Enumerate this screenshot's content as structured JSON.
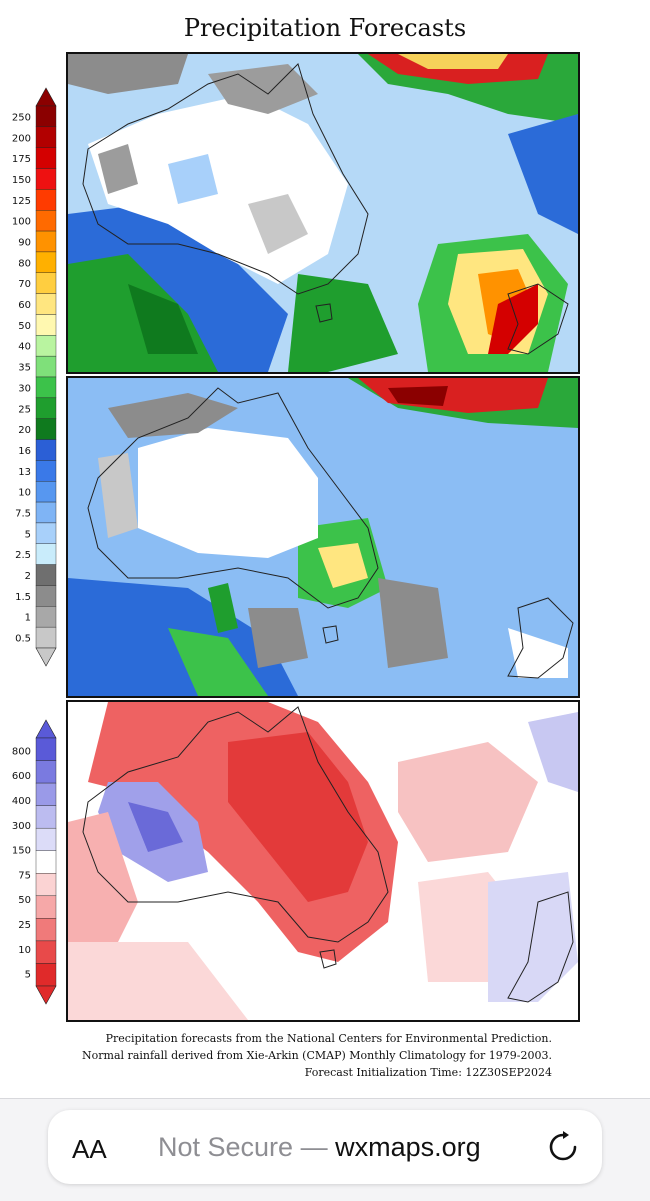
{
  "title": "Precipitation Forecasts",
  "legend_top": {
    "labels": [
      "250",
      "200",
      "175",
      "150",
      "125",
      "100",
      "90",
      "80",
      "70",
      "60",
      "50",
      "40",
      "35",
      "30",
      "25",
      "20",
      "16",
      "13",
      "10",
      "7.5",
      "5",
      "2.5",
      "2",
      "1.5",
      "1",
      "0.5"
    ],
    "colors": [
      "#8b0000",
      "#b20000",
      "#d40000",
      "#ee1111",
      "#ff3b00",
      "#ff6a00",
      "#ff9200",
      "#ffb000",
      "#ffce40",
      "#ffe680",
      "#fff8b0",
      "#b9f4a0",
      "#7fe07a",
      "#3cc24a",
      "#1f9e2e",
      "#0f7a1e",
      "#2b5fd6",
      "#3a79e8",
      "#5797f0",
      "#7fb4f5",
      "#a8d0fa",
      "#c9ecfb",
      "#6f6f6f",
      "#8c8c8c",
      "#a8a8a8",
      "#c8c8c8"
    ]
  },
  "legend_bottom": {
    "labels": [
      "800",
      "600",
      "400",
      "300",
      "150",
      "75",
      "50",
      "25",
      "10",
      "5"
    ],
    "colors": [
      "#5a5ad8",
      "#7a7ae0",
      "#9a9ae8",
      "#bcbcf0",
      "#dcdcf8",
      "#ffffff",
      "#fbd3d3",
      "#f6a8a8",
      "#f07a7a",
      "#e84a4a",
      "#e02a2a"
    ]
  },
  "caption": {
    "line1": "Precipitation forecasts from the National Centers for Environmental Prediction.",
    "line2": "Normal rainfall derived from Xie-Arkin (CMAP) Monthly Climatology for 1979-2003.",
    "line3": "Forecast Initialization Time: 12Z30SEP2024"
  },
  "browser": {
    "aa_label": "AA",
    "not_secure": "Not Secure —",
    "domain": "wxmaps.org"
  },
  "icons": {
    "reload": "reload-icon"
  }
}
